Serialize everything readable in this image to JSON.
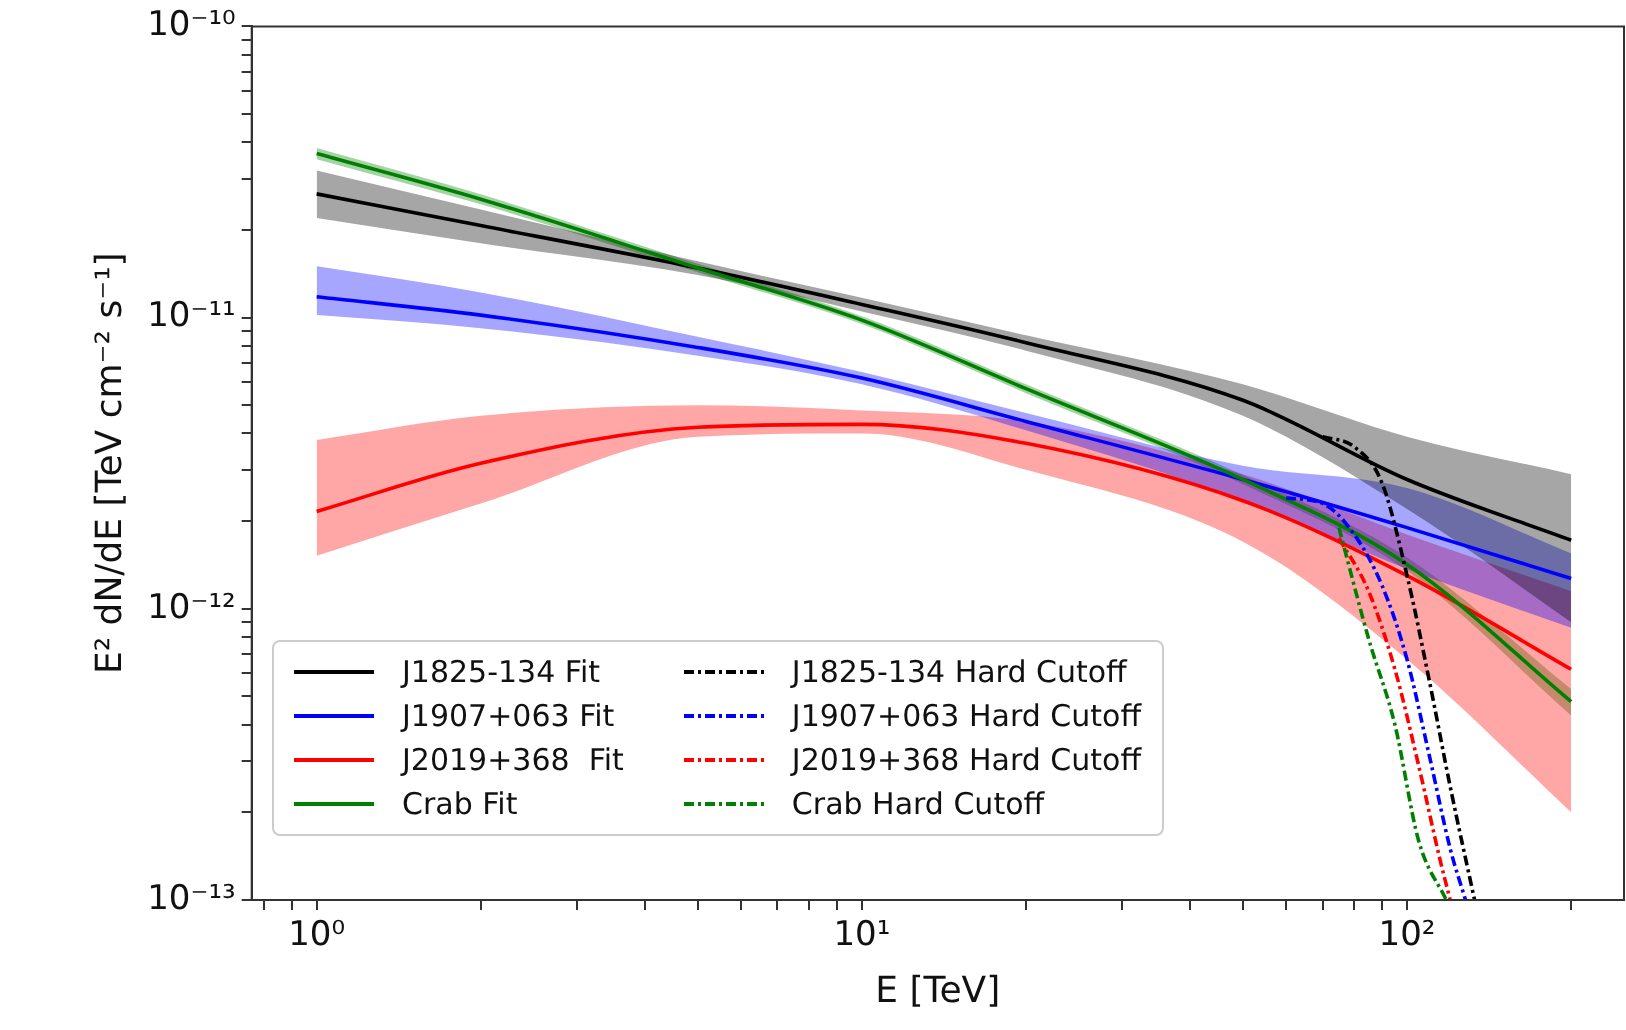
{
  "chart_data": {
    "type": "line",
    "xlabel": "E [TeV]",
    "ylabel": "E² dN/dE [TeV cm⁻² s⁻¹]",
    "log": "xy",
    "grid": false,
    "legend": "bottom left",
    "marker": "none",
    "xlim": [
      0.76,
      250
    ],
    "ylim": [
      1e-13,
      1e-10
    ],
    "xticks": [
      {
        "value": 0.8,
        "label": null
      },
      {
        "value": 0.9,
        "label": null
      },
      {
        "value": 1,
        "label": "10⁰"
      },
      {
        "value": 2,
        "label": null
      },
      {
        "value": 3,
        "label": null
      },
      {
        "value": 4,
        "label": null
      },
      {
        "value": 5,
        "label": null
      },
      {
        "value": 6,
        "label": null
      },
      {
        "value": 7,
        "label": null
      },
      {
        "value": 8,
        "label": null
      },
      {
        "value": 9,
        "label": null
      },
      {
        "value": 10,
        "label": "10¹"
      },
      {
        "value": 20,
        "label": null
      },
      {
        "value": 30,
        "label": null
      },
      {
        "value": 40,
        "label": null
      },
      {
        "value": 50,
        "label": null
      },
      {
        "value": 60,
        "label": null
      },
      {
        "value": 70,
        "label": null
      },
      {
        "value": 80,
        "label": null
      },
      {
        "value": 90,
        "label": null
      },
      {
        "value": 100,
        "label": "10²"
      },
      {
        "value": 200,
        "label": null
      }
    ],
    "yticks": [
      {
        "value": 1e-13,
        "label": "10⁻¹³"
      },
      {
        "value": 2e-13,
        "label": null
      },
      {
        "value": 3e-13,
        "label": null
      },
      {
        "value": 4e-13,
        "label": null
      },
      {
        "value": 5e-13,
        "label": null
      },
      {
        "value": 6e-13,
        "label": null
      },
      {
        "value": 7e-13,
        "label": null
      },
      {
        "value": 8e-13,
        "label": null
      },
      {
        "value": 9e-13,
        "label": null
      },
      {
        "value": 1e-12,
        "label": "10⁻¹²"
      },
      {
        "value": 2e-12,
        "label": null
      },
      {
        "value": 3e-12,
        "label": null
      },
      {
        "value": 4e-12,
        "label": null
      },
      {
        "value": 5e-12,
        "label": null
      },
      {
        "value": 6e-12,
        "label": null
      },
      {
        "value": 7e-12,
        "label": null
      },
      {
        "value": 8e-12,
        "label": null
      },
      {
        "value": 9e-12,
        "label": null
      },
      {
        "value": 1e-11,
        "label": "10⁻¹¹"
      },
      {
        "value": 2e-11,
        "label": null
      },
      {
        "value": 3e-11,
        "label": null
      },
      {
        "value": 4e-11,
        "label": null
      },
      {
        "value": 5e-11,
        "label": null
      },
      {
        "value": 6e-11,
        "label": null
      },
      {
        "value": 7e-11,
        "label": null
      },
      {
        "value": 8e-11,
        "label": null
      },
      {
        "value": 9e-11,
        "label": null
      },
      {
        "value": 1e-10,
        "label": "10⁻¹⁰"
      }
    ],
    "x": [
      1,
      2,
      5,
      10,
      20,
      50,
      100,
      200
    ],
    "series": [
      {
        "name": "J1825-134 Fit",
        "color": "#000000",
        "line_style": "solid",
        "values": [
          2.66e-11,
          2.07e-11,
          1.48e-11,
          1.11e-11,
          8.2e-12,
          5.2e-12,
          2.78e-12,
          1.72e-12
        ],
        "lower": [
          2.2e-11,
          1.8e-11,
          1.4e-11,
          1.05e-11,
          7.7e-12,
          4.6e-12,
          2.2e-12,
          9e-13
        ],
        "upper": [
          3.2e-11,
          2.35e-11,
          1.56e-11,
          1.17e-11,
          8.7e-12,
          5.9e-12,
          3.9e-12,
          2.9e-12
        ]
      },
      {
        "name": "J1907+063 Fit",
        "color": "#0000ff",
        "line_style": "solid",
        "values": [
          1.18e-11,
          1.02e-11,
          7.9e-12,
          6.2e-12,
          4.4e-12,
          2.78e-12,
          1.9e-12,
          1.27e-12
        ],
        "lower": [
          1.02e-11,
          9.2e-12,
          7.4e-12,
          5.9e-12,
          4.1e-12,
          2.35e-12,
          1.37e-12,
          8.6e-13
        ],
        "upper": [
          1.5e-11,
          1.22e-11,
          8.6e-12,
          6.5e-12,
          4.7e-12,
          3.1e-12,
          2.6e-12,
          1.55e-12
        ]
      },
      {
        "name": "J2019+368  Fit",
        "color": "#ff0000",
        "line_style": "solid",
        "values": [
          2.16e-12,
          3.16e-12,
          4.2e-12,
          4.3e-12,
          3.7e-12,
          2.35e-12,
          1.3e-12,
          6.2e-13
        ],
        "lower": [
          1.52e-12,
          2.3e-12,
          3.9e-12,
          4e-12,
          3e-12,
          1.7e-12,
          6.7e-13,
          2e-13
        ],
        "upper": [
          3.8e-12,
          4.6e-12,
          5e-12,
          4.8e-12,
          4.4e-12,
          2.9e-12,
          1.8e-12,
          1.15e-12
        ]
      },
      {
        "name": "Crab Fit",
        "color": "#008000",
        "line_style": "solid",
        "values": [
          3.66e-11,
          2.55e-11,
          1.48e-11,
          9.8e-12,
          5.7e-12,
          2.78e-12,
          1.42e-12,
          4.8e-13
        ],
        "lower": [
          3.5e-11,
          2.45e-11,
          1.43e-11,
          9.5e-12,
          5.5e-12,
          2.68e-12,
          1.35e-12,
          4.3e-13
        ],
        "upper": [
          3.82e-11,
          2.65e-11,
          1.53e-11,
          1.01e-11,
          5.9e-12,
          2.88e-12,
          1.5e-12,
          5.3e-13
        ]
      },
      {
        "name": "J1825-134 Hard Cutoff",
        "color": "#000000",
        "line_style": "dashdot",
        "x": [
          70,
          80,
          90,
          100,
          110,
          120,
          133
        ],
        "values": [
          3.9e-12,
          3.6e-12,
          2.7e-12,
          1.3e-12,
          5.6e-13,
          2.45e-13,
          1e-13
        ]
      },
      {
        "name": "J1907+063 Hard Cutoff",
        "color": "#0000ff",
        "line_style": "dashdot",
        "x": [
          60,
          70,
          80,
          90,
          100,
          110,
          120,
          128
        ],
        "values": [
          2.4e-12,
          2.3e-12,
          1.8e-12,
          1.2e-12,
          6.7e-13,
          3.1e-13,
          1.5e-13,
          1e-13
        ]
      },
      {
        "name": "J2019+368 Hard Cutoff",
        "color": "#ff0000",
        "line_style": "dashdot",
        "x": [
          75,
          85,
          95,
          105,
          115,
          120
        ],
        "values": [
          1.75e-12,
          1.15e-12,
          6.2e-13,
          2.9e-13,
          1.37e-13,
          1e-13
        ]
      },
      {
        "name": "Crab Hard Cutoff",
        "color": "#008000",
        "line_style": "dashdot",
        "x": [
          75,
          85,
          95,
          105,
          118
        ],
        "values": [
          1.9e-12,
          7.9e-13,
          4e-13,
          1.6e-13,
          1e-13
        ]
      }
    ]
  }
}
